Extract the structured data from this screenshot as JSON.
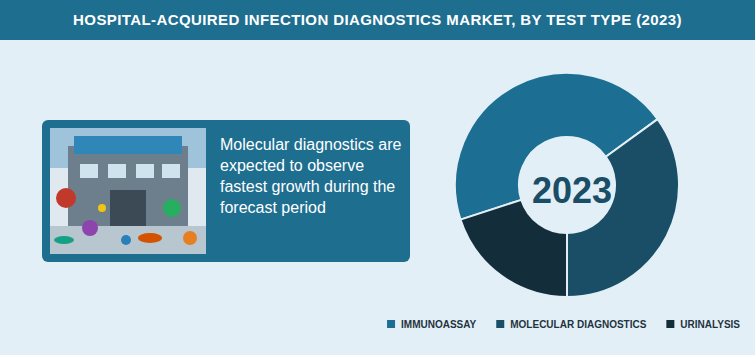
{
  "chart_data": {
    "type": "pie",
    "title": "HOSPITAL-ACQUIRED INFECTION DIAGNOSTICS MARKET, BY TEST TYPE (2023)",
    "annotation": "Molecular diagnostics are expected to observe fastest growth during the forecast period",
    "center_label": "2023",
    "categories": [
      "IMMUNOASSAY",
      "MOLECULAR DIAGNOSTICS",
      "URINALYSIS"
    ],
    "values": [
      45,
      35,
      20
    ],
    "colors": [
      "#1c6f92",
      "#1a4d66",
      "#132d3b"
    ],
    "legend": "bottom-right",
    "data_labels": false
  }
}
